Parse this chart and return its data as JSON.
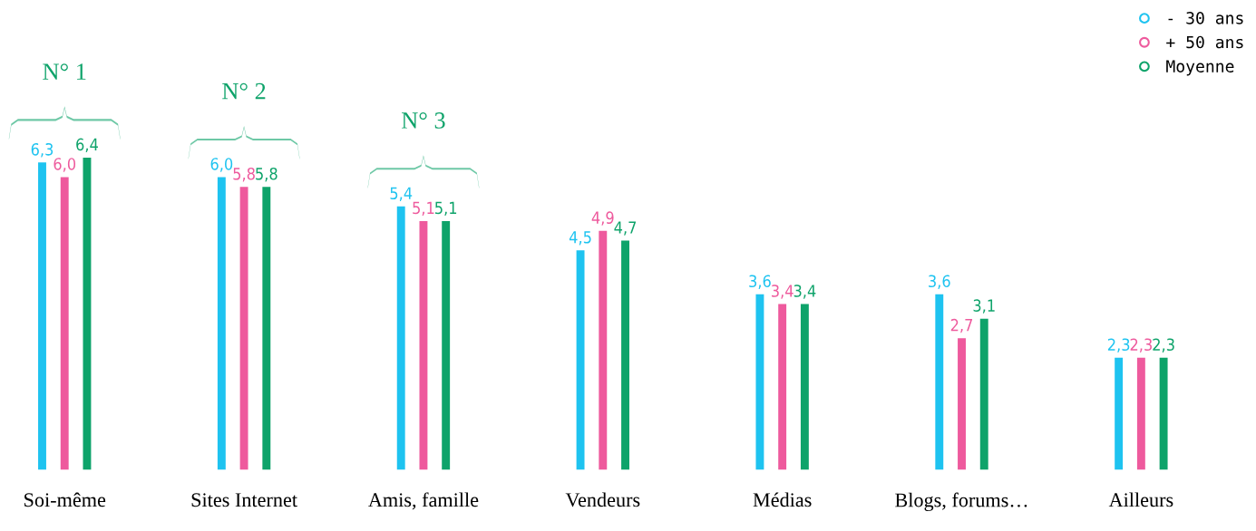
{
  "chart_data": {
    "type": "bar",
    "categories": [
      "Soi-même",
      "Sites Internet",
      "Amis, famille",
      "Vendeurs",
      "Médias",
      "Blogs, forums…",
      "Ailleurs"
    ],
    "series": [
      {
        "name": "- 30 ans",
        "color": "#1ec3f0",
        "values": [
          6.3,
          6.0,
          5.4,
          4.5,
          3.6,
          3.6,
          2.3
        ],
        "value_labels": [
          "6,3",
          "6,0",
          "5,4",
          "4,5",
          "3,6",
          "3,6",
          "2,3"
        ]
      },
      {
        "name": "+ 50 ans",
        "color": "#ee5a9d",
        "values": [
          6.0,
          5.8,
          5.1,
          4.9,
          3.4,
          2.7,
          2.3
        ],
        "value_labels": [
          "6,0",
          "5,8",
          "5,1",
          "4,9",
          "3,4",
          "2,7",
          "2,3"
        ]
      },
      {
        "name": "Moyenne",
        "color": "#0ea36a",
        "values": [
          6.4,
          5.8,
          5.1,
          4.7,
          3.4,
          3.1,
          2.3
        ],
        "value_labels": [
          "6,4",
          "5,8",
          "5,1",
          "4,7",
          "3,4",
          "3,1",
          "2,3"
        ]
      }
    ],
    "annotations": [
      "N° 1",
      "N° 2",
      "N° 3"
    ],
    "legend": "top right",
    "marker": "circle",
    "grid": false,
    "tick_labels": "x"
  }
}
